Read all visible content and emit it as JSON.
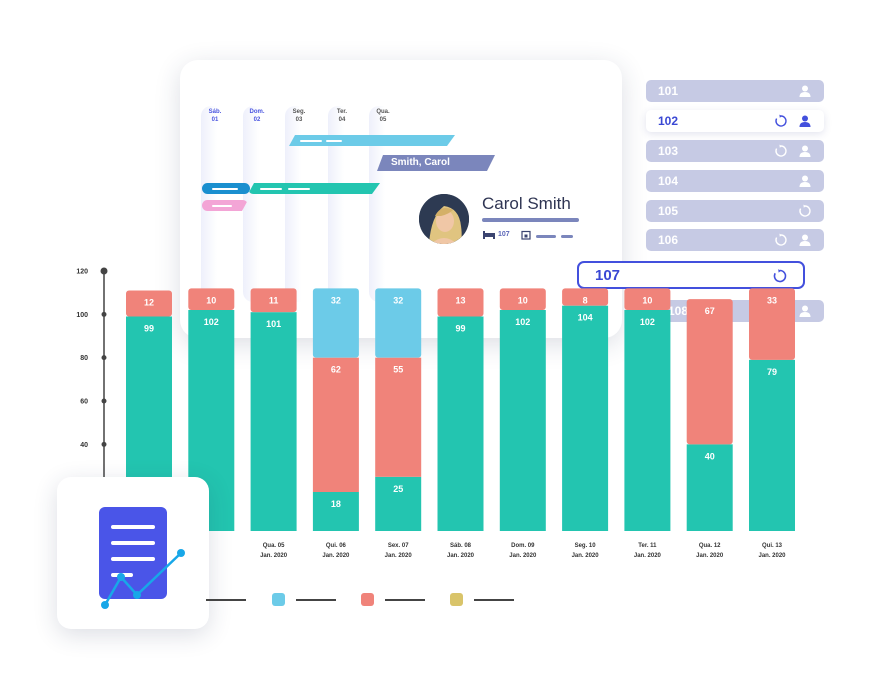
{
  "calendar": {
    "days": [
      {
        "name": "Sáb.",
        "num": "01",
        "highlight": true
      },
      {
        "name": "Dom.",
        "num": "02",
        "highlight": true
      },
      {
        "name": "Seg.",
        "num": "03",
        "highlight": false
      },
      {
        "name": "Ter.",
        "num": "04",
        "highlight": false
      },
      {
        "name": "Qua.",
        "num": "05",
        "highlight": false
      }
    ],
    "booking_label": "Smith, Carol"
  },
  "guest": {
    "name": "Carol Smith",
    "room": "107"
  },
  "rooms": [
    {
      "number": "101",
      "icons": [
        "user-icon"
      ],
      "selected": false
    },
    {
      "number": "102",
      "icons": [
        "refresh-icon",
        "user-icon"
      ],
      "selected": true
    },
    {
      "number": "103",
      "icons": [
        "refresh-icon",
        "user-icon"
      ],
      "selected": false
    },
    {
      "number": "104",
      "icons": [
        "user-icon"
      ],
      "selected": false
    },
    {
      "number": "105",
      "icons": [
        "refresh-icon"
      ],
      "selected": false
    },
    {
      "number": "106",
      "icons": [
        "refresh-icon",
        "user-icon"
      ],
      "selected": false
    },
    {
      "number": "108",
      "icons": [
        "user-icon"
      ],
      "selected": false
    }
  ],
  "room_input": {
    "value": "107"
  },
  "colors": {
    "teal": "#23c5b0",
    "salmon": "#f0837a",
    "sky": "#6ccbe8",
    "yellow": "#d9c46a",
    "accent": "#4350dd",
    "muted": "#c6cae4"
  },
  "chart_data": {
    "type": "bar",
    "stacked": true,
    "categories": [
      "",
      "",
      "Qua. 05 Jan. 2020",
      "Qui. 06 Jan. 2020",
      "Sex. 07 Jan. 2020",
      "Sáb. 08 Jan. 2020",
      "Dom. 09 Jan. 2020",
      "Seg. 10 Jan. 2020",
      "Ter. 11 Jan. 2020",
      "Qua. 12 Jan. 2020",
      "Qui. 13 Jan. 2020"
    ],
    "x_label_lines": [
      [
        "",
        ""
      ],
      [
        "",
        ""
      ],
      [
        "Qua. 05",
        "Jan. 2020"
      ],
      [
        "Qui. 06",
        "Jan. 2020"
      ],
      [
        "Sex. 07",
        "Jan. 2020"
      ],
      [
        "Sáb. 08",
        "Jan. 2020"
      ],
      [
        "Dom. 09",
        "Jan. 2020"
      ],
      [
        "Seg. 10",
        "Jan. 2020"
      ],
      [
        "Ter. 11",
        "Jan. 2020"
      ],
      [
        "Qua. 12",
        "Jan. 2020"
      ],
      [
        "Qui. 13",
        "Jan. 2020"
      ]
    ],
    "series": [
      {
        "color": "#23c5b0",
        "values": [
          99,
          102,
          101,
          18,
          25,
          99,
          102,
          104,
          102,
          40,
          79
        ]
      },
      {
        "color": "#f0837a",
        "values": [
          12,
          10,
          11,
          62,
          55,
          13,
          10,
          8,
          10,
          67,
          33
        ]
      },
      {
        "color": "#6ccbe8",
        "values": [
          0,
          0,
          0,
          32,
          32,
          0,
          0,
          0,
          0,
          0,
          0
        ]
      }
    ],
    "yticks": [
      40,
      60,
      80,
      100,
      120
    ],
    "ylim": [
      0,
      120
    ],
    "grid": false,
    "legend_colors": [
      "#6ccbe8",
      "#f0837a",
      "#d9c46a"
    ]
  }
}
